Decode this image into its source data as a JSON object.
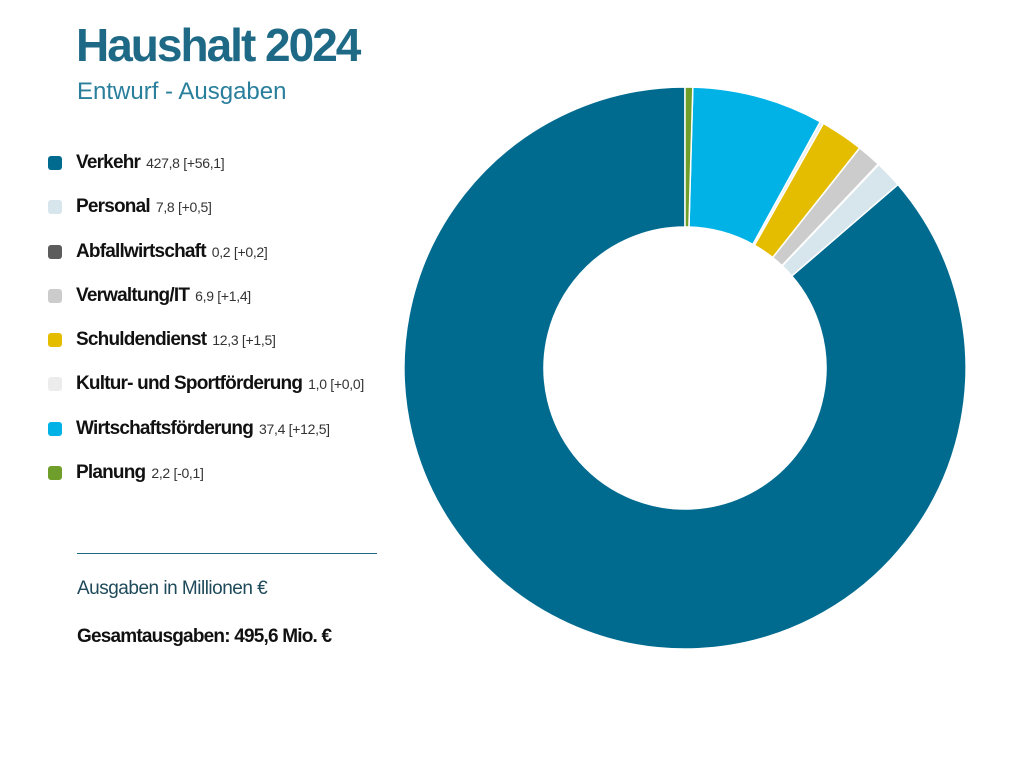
{
  "header": {
    "title": "Haushalt 2024",
    "subtitle": "Entwurf - Ausgaben"
  },
  "colors": {
    "title": "#1e6a86",
    "subtitle": "#2a7f9c",
    "unit_note": "#1e4a5a"
  },
  "footer": {
    "unit_note": "Ausgaben in Millionen €",
    "total_text": "Gesamtausgaben: 495,6 Mio. €"
  },
  "chart_data": {
    "type": "pie",
    "variant": "donut",
    "total": 495.6,
    "legend_position": "left",
    "slices": [
      {
        "label": "Verkehr",
        "value": 427.8,
        "value_text": "427,8",
        "change_text": "[+56,1]",
        "color": "#006b8f"
      },
      {
        "label": "Personal",
        "value": 7.8,
        "value_text": "7,8",
        "change_text": "[+0,5]",
        "color": "#d6e6ec"
      },
      {
        "label": "Abfallwirtschaft",
        "value": 0.2,
        "value_text": "0,2",
        "change_text": "[+0,2]",
        "color": "#5c5c5c"
      },
      {
        "label": "Verwaltung/IT",
        "value": 6.9,
        "value_text": "6,9",
        "change_text": "[+1,4]",
        "color": "#cccccc"
      },
      {
        "label": "Schuldendienst",
        "value": 12.3,
        "value_text": "12,3",
        "change_text": "[+1,5]",
        "color": "#e4bd00"
      },
      {
        "label": "Kultur- und Sportförderung",
        "value": 1.0,
        "value_text": "1,0",
        "change_text": "[+0,0]",
        "color": "#ececec"
      },
      {
        "label": "Wirtschaftsförderung",
        "value": 37.4,
        "value_text": "37,4",
        "change_text": "[+12,5]",
        "color": "#00b2e6"
      },
      {
        "label": "Planung",
        "value": 2.2,
        "value_text": "2,2",
        "change_text": "[-0,1]",
        "color": "#6f9e2a"
      }
    ]
  }
}
